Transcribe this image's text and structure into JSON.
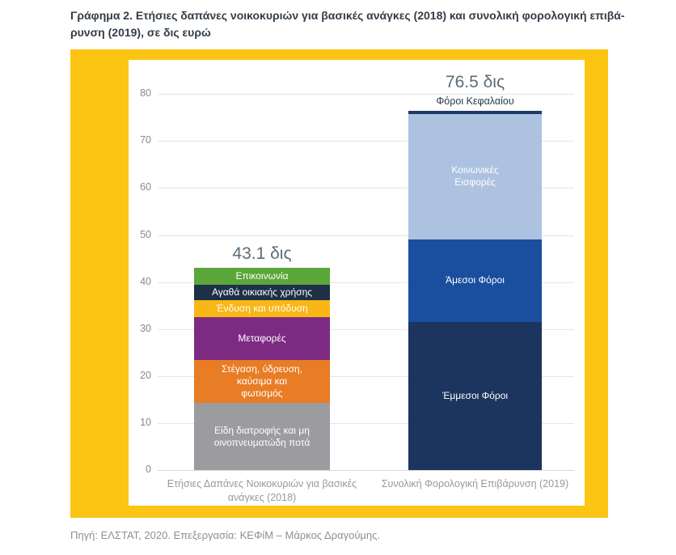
{
  "page": {
    "title_line1": "Γράφημα 2. Ετήσιες δαπάνες νοικοκυριών για βασικές ανάγκες (2018) και συνολική φορολογική επιβά-",
    "title_line2": "ρυνση (2019), σε δις ευρώ",
    "source": "Πηγή: ΕΛΣΤΑΤ, 2020. Επεξεργασία: ΚΕΦίΜ – Μάρκος Δραγούμης."
  },
  "colors": {
    "frame_yellow": "#fdc513",
    "panel_white": "#ffffff",
    "gridline": "#e6e6e6",
    "baseline": "#d9d9d9",
    "axis_text": "#87898c",
    "value_label_text": "#5d6b76",
    "title_text": "#333d47",
    "source_text": "#8d8f92"
  },
  "chart_data": {
    "type": "bar",
    "subtype": "stacked",
    "title": "Ετήσιες δαπάνες νοικοκυριών για βασικές ανάγκες (2018) και συνολική φορολογική επιβάρυνση (2019), σε δις ευρώ",
    "unit": "δις ευρώ",
    "ylim": [
      0,
      80
    ],
    "yticks": [
      0,
      10,
      20,
      30,
      40,
      50,
      60,
      70,
      80
    ],
    "grid": true,
    "legend": "none (labels inside segments)",
    "categories": [
      "Ετήσιες Δαπάνες Νοικοκυριών για βασικές ανάγκες (2018)",
      "Συνολική Φορολογική Επιβάρυνση (2019)"
    ],
    "bars": [
      {
        "category": "Ετήσιες Δαπάνες Νοικοκυριών για βασικές ανάγκες (2018)",
        "total": 43.1,
        "total_label": "43.1 δις",
        "segments": [
          {
            "name": "Είδη διατροφής και μη οινοπνευματώδη ποτά",
            "label": "Είδη διατροφής και μη\nοινοπνευματώδη ποτά",
            "value": 14.2,
            "color": "#9c9ca0"
          },
          {
            "name": "Στέγαση, ύδρευση, καύσιμα και φωτισμός",
            "label": "Στέγαση, ύδρευση,\nκαύσιμα και\nφωτισμός",
            "value": 9.2,
            "color": "#e87d25"
          },
          {
            "name": "Μεταφορές",
            "label": "Μεταφορές",
            "value": 9.2,
            "color": "#7d2b82"
          },
          {
            "name": "Ένδυση και υπόδυση",
            "label": "Ένδυση και υπόδυση",
            "value": 3.6,
            "color": "#f8b617"
          },
          {
            "name": "Αγαθά οικιακής χρήσης",
            "label": "Αγαθά οικιακής χρήσης",
            "value": 3.2,
            "color": "#1d3048"
          },
          {
            "name": "Επικοινωνία",
            "label": "Επικοινωνία",
            "value": 3.7,
            "color": "#5ba639"
          }
        ]
      },
      {
        "category": "Συνολική Φορολογική Επιβάρυνση (2019)",
        "total": 76.5,
        "total_label": "76.5 δις",
        "segments": [
          {
            "name": "Έμμεσοι Φόροι",
            "label": "Έμμεσοι Φόροι",
            "value": 31.5,
            "color": "#1c355e"
          },
          {
            "name": "Άμεσοι Φόροι",
            "label": "Άμεσοι Φόροι",
            "value": 17.6,
            "color": "#194f9e"
          },
          {
            "name": "Κοινωνικές Εισφορές",
            "label": "Κοινωνικές\nΕισφορές",
            "value": 26.6,
            "color": "#adc2e0"
          },
          {
            "name": "Φόροι Κεφαλαίου",
            "label": "Φόροι Κεφαλαίου",
            "value": 0.8,
            "color": "#1e3a66",
            "label_position": "above"
          }
        ]
      }
    ]
  }
}
